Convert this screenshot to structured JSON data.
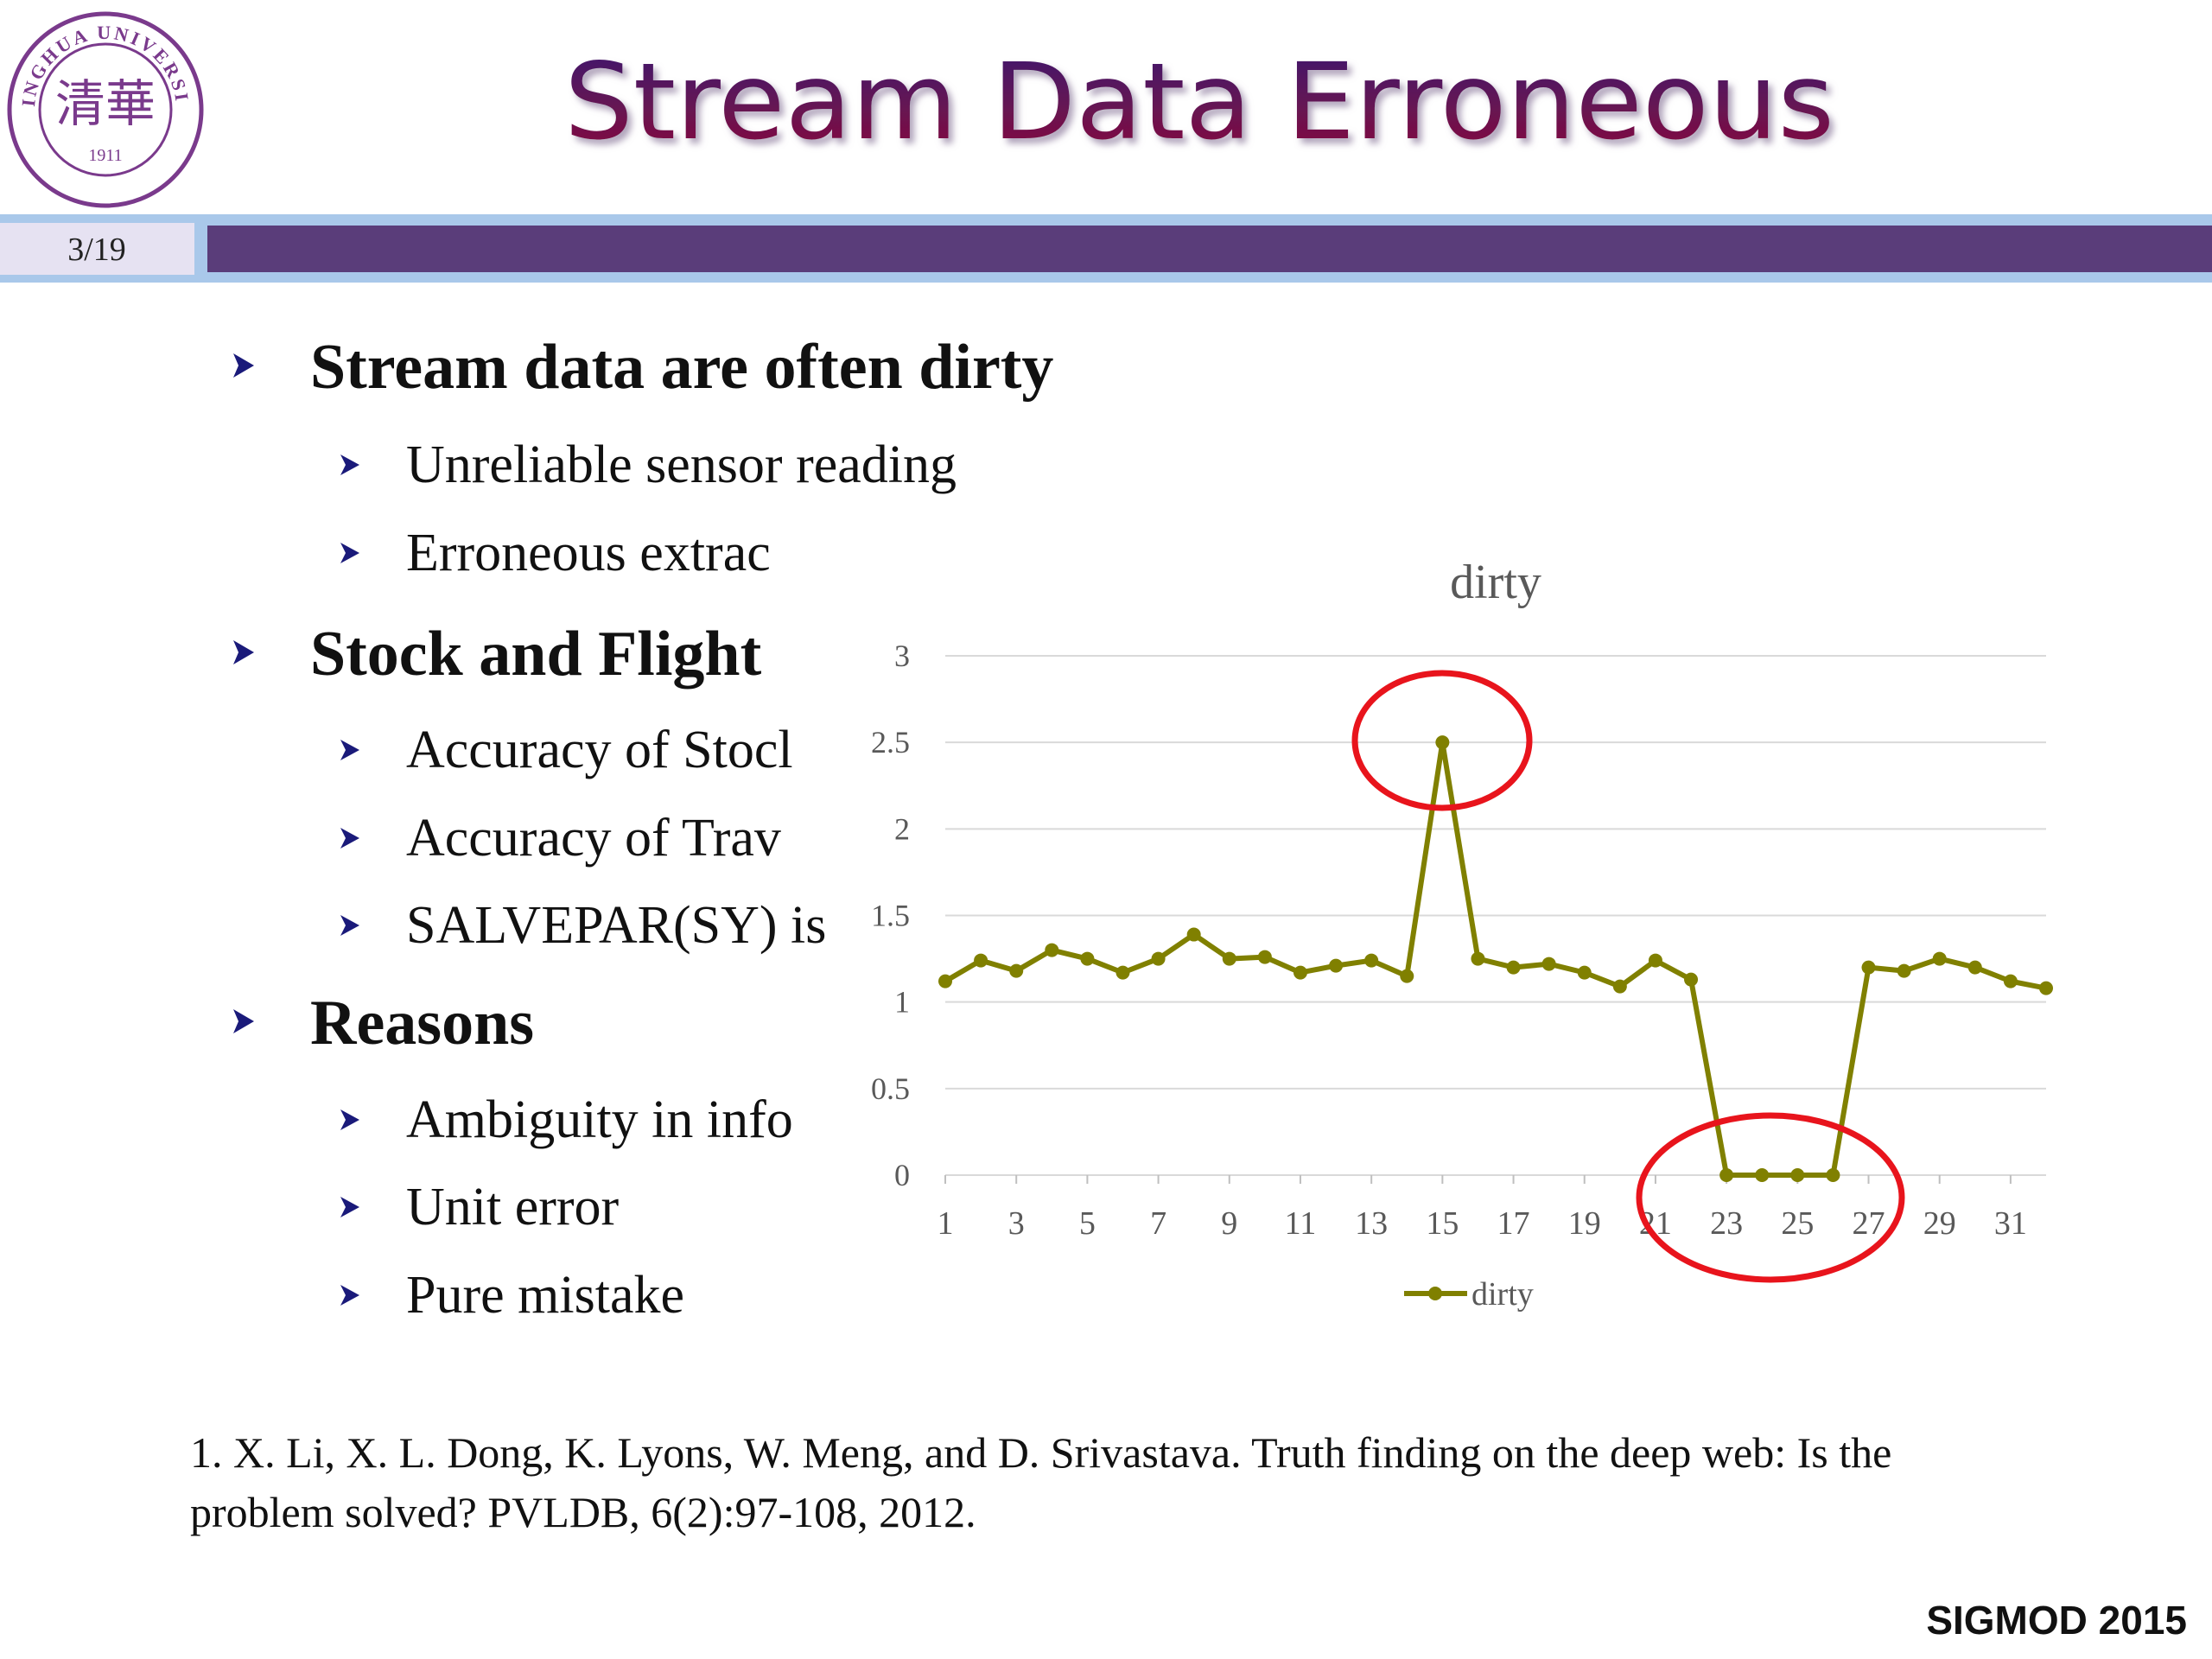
{
  "logo": {
    "arc_text": "TSINGHUA UNIVERSITY",
    "characters": "清華",
    "year": "1911"
  },
  "header": {
    "title": "Stream Data Erroneous",
    "page": "3/19"
  },
  "bullets": [
    {
      "text": "Stream data are often dirty",
      "sub": [
        "Unreliable sensor reading",
        "Erroneous extrac"
      ]
    },
    {
      "text": "Stock and Flight",
      "sub": [
        "Accuracy of Stocl",
        "Accuracy of Trav",
        "SALVEPAR(SY) is"
      ]
    },
    {
      "text": "Reasons",
      "sub": [
        "Ambiguity in info",
        "Unit error",
        "Pure mistake"
      ]
    }
  ],
  "chart_data": {
    "type": "line",
    "title": "dirty",
    "x": [
      1,
      2,
      3,
      4,
      5,
      6,
      7,
      8,
      9,
      10,
      11,
      12,
      13,
      14,
      15,
      16,
      17,
      18,
      19,
      20,
      21,
      22,
      23,
      24,
      25,
      26,
      27,
      28,
      29,
      30,
      31,
      32
    ],
    "series": [
      {
        "name": "dirty",
        "color": "#808000",
        "values": [
          1.12,
          1.24,
          1.18,
          1.3,
          1.25,
          1.17,
          1.25,
          1.39,
          1.25,
          1.26,
          1.17,
          1.21,
          1.24,
          1.15,
          2.5,
          1.25,
          1.2,
          1.22,
          1.17,
          1.09,
          1.24,
          1.13,
          0,
          0,
          0,
          0,
          1.2,
          1.18,
          1.25,
          1.2,
          1.12,
          1.08
        ]
      }
    ],
    "xlim": [
      1,
      32
    ],
    "xticks": [
      1,
      3,
      5,
      7,
      9,
      11,
      13,
      15,
      17,
      19,
      21,
      23,
      25,
      27,
      29,
      31
    ],
    "ylim": [
      0,
      3
    ],
    "yticks": [
      0,
      0.5,
      1,
      1.5,
      2,
      2.5,
      3
    ],
    "grid": true,
    "legend": "bottom"
  },
  "footnote": [
    "1. X. Li, X. L. Dong, K. Lyons, W. Meng, and D. Srivastava. Truth finding on the deep web: Is the",
    "problem solved? PVLDB, 6(2):97-108, 2012."
  ],
  "footer": "SIGMOD 2015"
}
